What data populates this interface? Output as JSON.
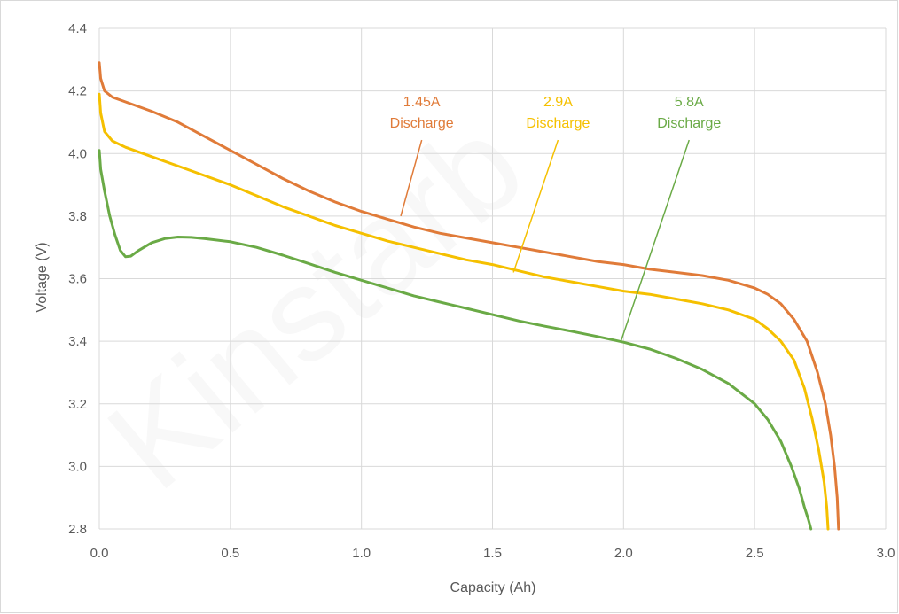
{
  "chart_data": {
    "type": "line",
    "title": "",
    "xlabel": "Capacity (Ah)",
    "ylabel": "Voltage (V)",
    "xlim": [
      0.0,
      3.0
    ],
    "ylim": [
      2.8,
      4.4
    ],
    "x_ticks": [
      "0.0",
      "0.5",
      "1.0",
      "1.5",
      "2.0",
      "2.5",
      "3.0"
    ],
    "y_ticks": [
      "2.8",
      "3.0",
      "3.2",
      "3.4",
      "3.6",
      "3.8",
      "4.0",
      "4.2",
      "4.4"
    ],
    "grid": true,
    "legend": "none",
    "series": [
      {
        "name": "1.45A Discharge",
        "color": "#E07B39",
        "points": [
          [
            0.0,
            4.29
          ],
          [
            0.005,
            4.24
          ],
          [
            0.02,
            4.2
          ],
          [
            0.05,
            4.18
          ],
          [
            0.1,
            4.165
          ],
          [
            0.2,
            4.135
          ],
          [
            0.3,
            4.1
          ],
          [
            0.4,
            4.055
          ],
          [
            0.5,
            4.01
          ],
          [
            0.6,
            3.965
          ],
          [
            0.7,
            3.92
          ],
          [
            0.8,
            3.88
          ],
          [
            0.9,
            3.845
          ],
          [
            1.0,
            3.815
          ],
          [
            1.1,
            3.79
          ],
          [
            1.2,
            3.765
          ],
          [
            1.3,
            3.745
          ],
          [
            1.4,
            3.73
          ],
          [
            1.5,
            3.715
          ],
          [
            1.6,
            3.7
          ],
          [
            1.7,
            3.685
          ],
          [
            1.8,
            3.67
          ],
          [
            1.9,
            3.655
          ],
          [
            2.0,
            3.645
          ],
          [
            2.1,
            3.63
          ],
          [
            2.2,
            3.62
          ],
          [
            2.3,
            3.61
          ],
          [
            2.4,
            3.595
          ],
          [
            2.5,
            3.57
          ],
          [
            2.55,
            3.55
          ],
          [
            2.6,
            3.52
          ],
          [
            2.65,
            3.47
          ],
          [
            2.7,
            3.4
          ],
          [
            2.74,
            3.3
          ],
          [
            2.77,
            3.2
          ],
          [
            2.79,
            3.1
          ],
          [
            2.805,
            3.0
          ],
          [
            2.815,
            2.9
          ],
          [
            2.82,
            2.8
          ]
        ]
      },
      {
        "name": "2.9A Discharge",
        "color": "#F5C000",
        "points": [
          [
            0.0,
            4.19
          ],
          [
            0.005,
            4.13
          ],
          [
            0.02,
            4.07
          ],
          [
            0.05,
            4.04
          ],
          [
            0.1,
            4.02
          ],
          [
            0.2,
            3.99
          ],
          [
            0.3,
            3.96
          ],
          [
            0.4,
            3.93
          ],
          [
            0.5,
            3.9
          ],
          [
            0.6,
            3.865
          ],
          [
            0.7,
            3.83
          ],
          [
            0.8,
            3.8
          ],
          [
            0.9,
            3.77
          ],
          [
            1.0,
            3.745
          ],
          [
            1.1,
            3.72
          ],
          [
            1.2,
            3.7
          ],
          [
            1.3,
            3.68
          ],
          [
            1.4,
            3.66
          ],
          [
            1.5,
            3.645
          ],
          [
            1.6,
            3.625
          ],
          [
            1.7,
            3.605
          ],
          [
            1.8,
            3.59
          ],
          [
            1.9,
            3.575
          ],
          [
            2.0,
            3.56
          ],
          [
            2.1,
            3.55
          ],
          [
            2.2,
            3.535
          ],
          [
            2.3,
            3.52
          ],
          [
            2.4,
            3.5
          ],
          [
            2.5,
            3.47
          ],
          [
            2.55,
            3.44
          ],
          [
            2.6,
            3.4
          ],
          [
            2.65,
            3.34
          ],
          [
            2.69,
            3.25
          ],
          [
            2.72,
            3.15
          ],
          [
            2.745,
            3.05
          ],
          [
            2.765,
            2.95
          ],
          [
            2.775,
            2.87
          ],
          [
            2.78,
            2.8
          ]
        ]
      },
      {
        "name": "5.8A Discharge",
        "color": "#6AAA46",
        "points": [
          [
            0.0,
            4.01
          ],
          [
            0.005,
            3.95
          ],
          [
            0.02,
            3.88
          ],
          [
            0.04,
            3.8
          ],
          [
            0.06,
            3.74
          ],
          [
            0.08,
            3.69
          ],
          [
            0.1,
            3.67
          ],
          [
            0.12,
            3.672
          ],
          [
            0.15,
            3.69
          ],
          [
            0.2,
            3.715
          ],
          [
            0.25,
            3.728
          ],
          [
            0.3,
            3.733
          ],
          [
            0.35,
            3.732
          ],
          [
            0.4,
            3.728
          ],
          [
            0.5,
            3.718
          ],
          [
            0.6,
            3.7
          ],
          [
            0.7,
            3.675
          ],
          [
            0.8,
            3.648
          ],
          [
            0.9,
            3.62
          ],
          [
            1.0,
            3.595
          ],
          [
            1.1,
            3.57
          ],
          [
            1.2,
            3.545
          ],
          [
            1.3,
            3.525
          ],
          [
            1.4,
            3.505
          ],
          [
            1.5,
            3.485
          ],
          [
            1.6,
            3.465
          ],
          [
            1.7,
            3.448
          ],
          [
            1.8,
            3.432
          ],
          [
            1.9,
            3.415
          ],
          [
            2.0,
            3.397
          ],
          [
            2.1,
            3.375
          ],
          [
            2.2,
            3.345
          ],
          [
            2.3,
            3.31
          ],
          [
            2.4,
            3.265
          ],
          [
            2.5,
            3.2
          ],
          [
            2.55,
            3.15
          ],
          [
            2.6,
            3.08
          ],
          [
            2.64,
            3.0
          ],
          [
            2.67,
            2.93
          ],
          [
            2.69,
            2.87
          ],
          [
            2.705,
            2.83
          ],
          [
            2.715,
            2.8
          ]
        ]
      }
    ],
    "annotations": [
      {
        "lines": [
          "1.45A",
          "Discharge"
        ],
        "color": "#E07B39",
        "text_at": [
          1.23,
          4.06
        ],
        "arrow_to": [
          1.15,
          3.8
        ]
      },
      {
        "lines": [
          "2.9A",
          "Discharge"
        ],
        "color": "#F5C000",
        "text_at": [
          1.75,
          4.06
        ],
        "arrow_to": [
          1.58,
          3.62
        ]
      },
      {
        "lines": [
          "5.8A",
          "Discharge"
        ],
        "color": "#6AAA46",
        "text_at": [
          2.25,
          4.06
        ],
        "arrow_to": [
          1.99,
          3.4
        ]
      }
    ]
  }
}
